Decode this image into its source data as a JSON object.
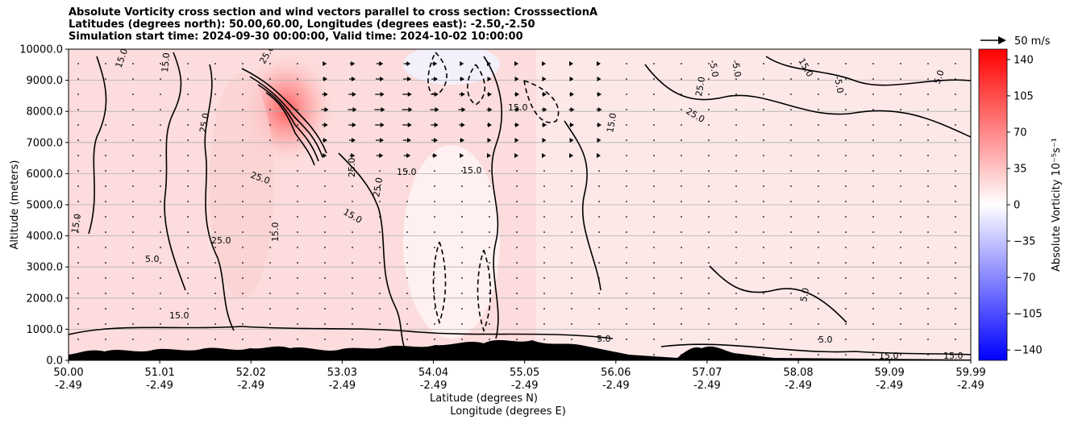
{
  "title_lines": [
    "Absolute Vorticity cross section and wind vectors parallel to cross section: CrosssectionA",
    "Latitudes (degrees north): 50.00,60.00, Longitudes (degrees east): -2.50,-2.50",
    "Simulation start time: 2024-09-30 00:00:00, Valid time: 2024-10-02 10:00:00"
  ],
  "chart_data": {
    "type": "heatmap",
    "ylabel": "Altitude (meters)",
    "xlabel_lat": "Latitude (degrees N)",
    "xlabel_lon": "Longitude (degrees E)",
    "ylim": [
      0,
      10000
    ],
    "y_ticks": [
      "0.0",
      "1000.0",
      "2000.0",
      "3000.0",
      "4000.0",
      "5000.0",
      "6000.0",
      "7000.0",
      "8000.0",
      "9000.0",
      "10000.0"
    ],
    "x_ticks": [
      {
        "lat": "50.00",
        "lon": "-2.49"
      },
      {
        "lat": "51.01",
        "lon": "-2.49"
      },
      {
        "lat": "52.02",
        "lon": "-2.49"
      },
      {
        "lat": "53.03",
        "lon": "-2.49"
      },
      {
        "lat": "54.04",
        "lon": "-2.49"
      },
      {
        "lat": "55.05",
        "lon": "-2.49"
      },
      {
        "lat": "56.06",
        "lon": "-2.49"
      },
      {
        "lat": "57.07",
        "lon": "-2.49"
      },
      {
        "lat": "58.08",
        "lon": "-2.49"
      },
      {
        "lat": "59.09",
        "lon": "-2.49"
      },
      {
        "lat": "59.99",
        "lon": "-2.49"
      }
    ],
    "grid": true,
    "colorbar": {
      "label": "Absolute Vorticity 10⁻⁵s⁻¹",
      "range": [
        -150,
        150
      ],
      "ticks": [
        "140",
        "105",
        "70",
        "35",
        "0",
        "−35",
        "−70",
        "−105",
        "−140"
      ],
      "tick_values": [
        140,
        105,
        70,
        35,
        0,
        -35,
        -70,
        -105,
        -140
      ],
      "colors": {
        "low": "#0000ff",
        "mid": "#ffffff",
        "high": "#ff0000"
      }
    },
    "quiver_key": "50 m/s",
    "contour_labels": [
      "5.0",
      "15.0",
      "25.0",
      "-5.0"
    ],
    "peak": {
      "lat": 52.3,
      "altitude": 7800,
      "vorticity": 120
    }
  }
}
